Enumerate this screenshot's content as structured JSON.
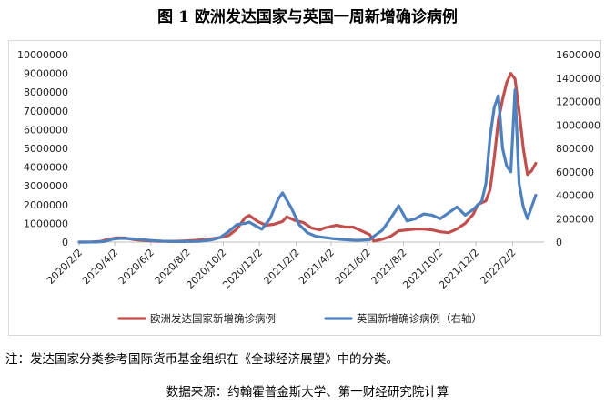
{
  "chart_data": {
    "type": "line",
    "title": "图 1 欧洲发达国家与英国一周新增确诊病例",
    "x_tick_labels": [
      "2020/2/2",
      "2020/4/2",
      "2020/6/2",
      "2020/8/2",
      "2020/10/2",
      "2020/12/2",
      "2021/2/2",
      "2021/4/2",
      "2021/6/2",
      "2021/8/2",
      "2021/10/2",
      "2021/12/2",
      "2022/2/2"
    ],
    "x_range": [
      "2020-02-02",
      "2022-03-27"
    ],
    "y_left_lim": [
      0,
      10000000
    ],
    "y_left_ticks": [
      "0",
      "1000000",
      "2000000",
      "3000000",
      "4000000",
      "5000000",
      "6000000",
      "7000000",
      "8000000",
      "9000000",
      "10000000"
    ],
    "y_right_lim": [
      0,
      1600000
    ],
    "y_right_ticks": [
      "0",
      "200000",
      "400000",
      "600000",
      "800000",
      "1000000",
      "1200000",
      "1400000",
      "1600000"
    ],
    "legend_position": "bottom",
    "grid": false,
    "series": [
      {
        "name": "欧洲发达国家新增确诊病例",
        "axis": "left",
        "color": "#c0504d",
        "points": [
          [
            "2020-02-02",
            0
          ],
          [
            "2020-02-23",
            5000
          ],
          [
            "2020-03-08",
            30000
          ],
          [
            "2020-03-22",
            150000
          ],
          [
            "2020-04-05",
            230000
          ],
          [
            "2020-04-19",
            220000
          ],
          [
            "2020-05-03",
            140000
          ],
          [
            "2020-05-24",
            80000
          ],
          [
            "2020-06-14",
            40000
          ],
          [
            "2020-07-05",
            40000
          ],
          [
            "2020-07-26",
            60000
          ],
          [
            "2020-08-16",
            90000
          ],
          [
            "2020-09-06",
            150000
          ],
          [
            "2020-09-27",
            250000
          ],
          [
            "2020-10-11",
            350000
          ],
          [
            "2020-10-25",
            700000
          ],
          [
            "2020-11-08",
            1300000
          ],
          [
            "2020-11-15",
            1420000
          ],
          [
            "2020-11-29",
            1100000
          ],
          [
            "2020-12-13",
            900000
          ],
          [
            "2020-12-27",
            950000
          ],
          [
            "2021-01-10",
            1100000
          ],
          [
            "2021-01-17",
            1350000
          ],
          [
            "2021-01-31",
            1150000
          ],
          [
            "2021-02-14",
            1050000
          ],
          [
            "2021-02-28",
            750000
          ],
          [
            "2021-03-14",
            650000
          ],
          [
            "2021-03-21",
            750000
          ],
          [
            "2021-04-04",
            850000
          ],
          [
            "2021-04-11",
            900000
          ],
          [
            "2021-04-25",
            800000
          ],
          [
            "2021-05-09",
            800000
          ],
          [
            "2021-05-23",
            600000
          ],
          [
            "2021-06-06",
            400000
          ],
          [
            "2021-06-13",
            50000
          ],
          [
            "2021-06-27",
            150000
          ],
          [
            "2021-07-11",
            300000
          ],
          [
            "2021-07-25",
            600000
          ],
          [
            "2021-08-08",
            650000
          ],
          [
            "2021-08-22",
            700000
          ],
          [
            "2021-09-05",
            700000
          ],
          [
            "2021-09-19",
            650000
          ],
          [
            "2021-10-03",
            550000
          ],
          [
            "2021-10-17",
            500000
          ],
          [
            "2021-10-31",
            700000
          ],
          [
            "2021-11-14",
            1000000
          ],
          [
            "2021-11-28",
            1500000
          ],
          [
            "2021-12-05",
            2000000
          ],
          [
            "2021-12-19",
            2200000
          ],
          [
            "2021-12-26",
            2800000
          ],
          [
            "2022-01-02",
            4500000
          ],
          [
            "2022-01-09",
            6500000
          ],
          [
            "2022-01-16",
            7600000
          ],
          [
            "2022-01-23",
            8500000
          ],
          [
            "2022-01-30",
            9000000
          ],
          [
            "2022-02-06",
            8700000
          ],
          [
            "2022-02-13",
            7000000
          ],
          [
            "2022-02-20",
            5000000
          ],
          [
            "2022-02-27",
            3600000
          ],
          [
            "2022-03-06",
            3800000
          ],
          [
            "2022-03-13",
            4200000
          ]
        ]
      },
      {
        "name": "英国新增确诊病例（右轴）",
        "axis": "right",
        "color": "#4f81bd",
        "points": [
          [
            "2020-02-02",
            0
          ],
          [
            "2020-03-01",
            1000
          ],
          [
            "2020-03-15",
            5000
          ],
          [
            "2020-03-29",
            25000
          ],
          [
            "2020-04-12",
            32000
          ],
          [
            "2020-04-26",
            30000
          ],
          [
            "2020-05-10",
            25000
          ],
          [
            "2020-05-31",
            15000
          ],
          [
            "2020-06-21",
            8000
          ],
          [
            "2020-07-12",
            5000
          ],
          [
            "2020-08-02",
            5000
          ],
          [
            "2020-08-23",
            7000
          ],
          [
            "2020-09-13",
            20000
          ],
          [
            "2020-09-27",
            40000
          ],
          [
            "2020-10-11",
            90000
          ],
          [
            "2020-10-25",
            150000
          ],
          [
            "2020-11-08",
            160000
          ],
          [
            "2020-11-15",
            170000
          ],
          [
            "2020-11-29",
            130000
          ],
          [
            "2020-12-06",
            110000
          ],
          [
            "2020-12-20",
            200000
          ],
          [
            "2021-01-03",
            370000
          ],
          [
            "2021-01-10",
            420000
          ],
          [
            "2021-01-24",
            300000
          ],
          [
            "2021-02-07",
            150000
          ],
          [
            "2021-02-21",
            80000
          ],
          [
            "2021-03-07",
            50000
          ],
          [
            "2021-03-21",
            40000
          ],
          [
            "2021-04-04",
            30000
          ],
          [
            "2021-04-25",
            20000
          ],
          [
            "2021-05-16",
            15000
          ],
          [
            "2021-06-06",
            20000
          ],
          [
            "2021-06-13",
            50000
          ],
          [
            "2021-06-27",
            100000
          ],
          [
            "2021-07-11",
            200000
          ],
          [
            "2021-07-25",
            310000
          ],
          [
            "2021-08-08",
            180000
          ],
          [
            "2021-08-22",
            200000
          ],
          [
            "2021-09-05",
            240000
          ],
          [
            "2021-09-19",
            230000
          ],
          [
            "2021-10-03",
            200000
          ],
          [
            "2021-10-17",
            250000
          ],
          [
            "2021-10-31",
            300000
          ],
          [
            "2021-11-14",
            230000
          ],
          [
            "2021-11-28",
            280000
          ],
          [
            "2021-12-12",
            350000
          ],
          [
            "2021-12-19",
            500000
          ],
          [
            "2021-12-26",
            900000
          ],
          [
            "2022-01-02",
            1150000
          ],
          [
            "2022-01-09",
            1250000
          ],
          [
            "2022-01-16",
            800000
          ],
          [
            "2022-01-23",
            650000
          ],
          [
            "2022-01-30",
            600000
          ],
          [
            "2022-02-06",
            1300000
          ],
          [
            "2022-02-13",
            500000
          ],
          [
            "2022-02-20",
            300000
          ],
          [
            "2022-02-27",
            200000
          ],
          [
            "2022-03-06",
            300000
          ],
          [
            "2022-03-13",
            400000
          ]
        ]
      }
    ]
  },
  "footer": {
    "note": "注：发达国家分类参考国际货币基金组织在《全球经济展望》中的分类。",
    "source": "数据来源：约翰霍普金斯大学、第一财经研究院计算"
  }
}
